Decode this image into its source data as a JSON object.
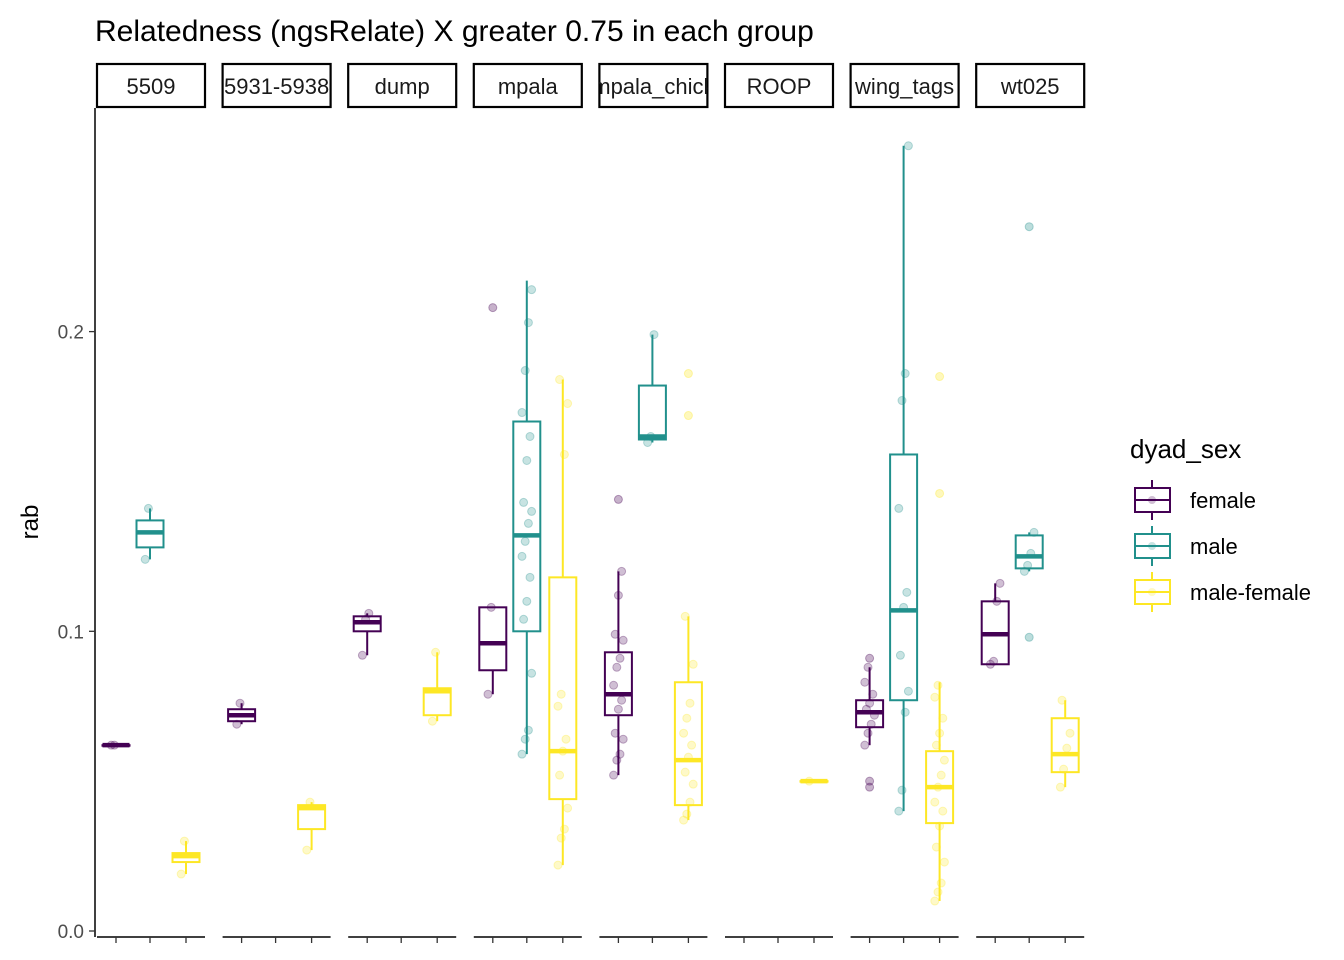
{
  "chart_data": {
    "type": "box",
    "title": "Relatedness (ngsRelate) X greater 0.75 in each group",
    "xlabel": "",
    "ylabel": "rab",
    "ylim": [
      0,
      0.27
    ],
    "yticks": [
      0.0,
      0.1,
      0.2
    ],
    "ytick_labels": [
      "0.0",
      "0.1",
      "0.2"
    ],
    "grid": false,
    "facets": [
      "5509",
      "5931-5938",
      "dump",
      "mpala",
      "mpala_chick",
      "ROOP",
      "wing_tags",
      "wt025"
    ],
    "legend": {
      "title": "dyad_sex",
      "position": "right",
      "entries": [
        "female",
        "male",
        "male-female"
      ]
    },
    "series_colors": {
      "female": "#440154",
      "male": "#21908C",
      "male-female": "#FDE725"
    },
    "groups": [
      {
        "facet": "5509",
        "sex": "female",
        "whisker_low": 0.062,
        "q1": 0.062,
        "median": 0.062,
        "q3": 0.062,
        "whisker_high": 0.062,
        "outliers": [],
        "points": [
          0.062,
          0.062
        ]
      },
      {
        "facet": "5509",
        "sex": "male",
        "whisker_low": 0.124,
        "q1": 0.128,
        "median": 0.133,
        "q3": 0.137,
        "whisker_high": 0.141,
        "outliers": [],
        "points": [
          0.124,
          0.141
        ]
      },
      {
        "facet": "5509",
        "sex": "male-female",
        "whisker_low": 0.019,
        "q1": 0.023,
        "median": 0.025,
        "q3": 0.026,
        "whisker_high": 0.03,
        "outliers": [],
        "points": [
          0.019,
          0.03
        ]
      },
      {
        "facet": "5931-5938",
        "sex": "female",
        "whisker_low": 0.069,
        "q1": 0.07,
        "median": 0.072,
        "q3": 0.074,
        "whisker_high": 0.076,
        "outliers": [],
        "points": [
          0.069,
          0.076
        ]
      },
      {
        "facet": "5931-5938",
        "sex": "male-female",
        "whisker_low": 0.027,
        "q1": 0.034,
        "median": 0.041,
        "q3": 0.042,
        "whisker_high": 0.043,
        "outliers": [],
        "points": [
          0.027,
          0.043
        ]
      },
      {
        "facet": "dump",
        "sex": "female",
        "whisker_low": 0.092,
        "q1": 0.1,
        "median": 0.103,
        "q3": 0.105,
        "whisker_high": 0.106,
        "outliers": [],
        "points": [
          0.092,
          0.104,
          0.106
        ]
      },
      {
        "facet": "dump",
        "sex": "male-female",
        "whisker_low": 0.07,
        "q1": 0.072,
        "median": 0.08,
        "q3": 0.081,
        "whisker_high": 0.093,
        "outliers": [],
        "points": [
          0.07,
          0.093
        ]
      },
      {
        "facet": "mpala",
        "sex": "female",
        "whisker_low": 0.079,
        "q1": 0.087,
        "median": 0.096,
        "q3": 0.108,
        "whisker_high": 0.108,
        "outliers": [
          0.208
        ],
        "points": [
          0.079,
          0.108
        ]
      },
      {
        "facet": "mpala",
        "sex": "male",
        "whisker_low": 0.059,
        "q1": 0.1,
        "median": 0.132,
        "q3": 0.17,
        "whisker_high": 0.217,
        "outliers": [],
        "points": [
          0.059,
          0.064,
          0.067,
          0.086,
          0.104,
          0.11,
          0.118,
          0.125,
          0.13,
          0.136,
          0.14,
          0.143,
          0.157,
          0.165,
          0.173,
          0.187,
          0.203,
          0.214
        ]
      },
      {
        "facet": "mpala",
        "sex": "male-female",
        "whisker_low": 0.022,
        "q1": 0.044,
        "median": 0.06,
        "q3": 0.118,
        "whisker_high": 0.184,
        "outliers": [],
        "points": [
          0.022,
          0.031,
          0.034,
          0.041,
          0.052,
          0.06,
          0.064,
          0.075,
          0.079,
          0.159,
          0.176,
          0.184
        ]
      },
      {
        "facet": "mpala_chick",
        "sex": "female",
        "whisker_low": 0.052,
        "q1": 0.072,
        "median": 0.079,
        "q3": 0.093,
        "whisker_high": 0.12,
        "outliers": [
          0.144
        ],
        "points": [
          0.052,
          0.057,
          0.059,
          0.064,
          0.066,
          0.074,
          0.077,
          0.082,
          0.088,
          0.091,
          0.097,
          0.099,
          0.112,
          0.12
        ]
      },
      {
        "facet": "mpala_chick",
        "sex": "male",
        "whisker_low": 0.163,
        "q1": 0.164,
        "median": 0.165,
        "q3": 0.182,
        "whisker_high": 0.199,
        "outliers": [],
        "points": [
          0.163,
          0.165,
          0.199
        ]
      },
      {
        "facet": "mpala_chick",
        "sex": "male-female",
        "whisker_low": 0.037,
        "q1": 0.042,
        "median": 0.057,
        "q3": 0.083,
        "whisker_high": 0.105,
        "outliers": [
          0.172,
          0.186
        ],
        "points": [
          0.037,
          0.039,
          0.043,
          0.049,
          0.053,
          0.058,
          0.062,
          0.066,
          0.071,
          0.076,
          0.089,
          0.105
        ]
      },
      {
        "facet": "ROOP",
        "sex": "male-female",
        "whisker_low": 0.05,
        "q1": 0.05,
        "median": 0.05,
        "q3": 0.05,
        "whisker_high": 0.05,
        "outliers": [],
        "points": [
          0.05
        ]
      },
      {
        "facet": "wing_tags",
        "sex": "female",
        "whisker_low": 0.062,
        "q1": 0.068,
        "median": 0.073,
        "q3": 0.077,
        "whisker_high": 0.088,
        "outliers": [
          0.048,
          0.05,
          0.091
        ],
        "points": [
          0.062,
          0.066,
          0.069,
          0.072,
          0.074,
          0.076,
          0.079,
          0.083,
          0.088
        ]
      },
      {
        "facet": "wing_tags",
        "sex": "male",
        "whisker_low": 0.04,
        "q1": 0.077,
        "median": 0.107,
        "q3": 0.159,
        "whisker_high": 0.262,
        "outliers": [],
        "points": [
          0.04,
          0.047,
          0.073,
          0.08,
          0.092,
          0.108,
          0.113,
          0.141,
          0.177,
          0.186,
          0.262
        ]
      },
      {
        "facet": "wing_tags",
        "sex": "male-female",
        "whisker_low": 0.01,
        "q1": 0.036,
        "median": 0.048,
        "q3": 0.06,
        "whisker_high": 0.083,
        "outliers": [
          0.146,
          0.185
        ],
        "points": [
          0.01,
          0.013,
          0.016,
          0.023,
          0.028,
          0.035,
          0.04,
          0.043,
          0.048,
          0.052,
          0.057,
          0.062,
          0.066,
          0.071,
          0.078,
          0.082
        ]
      },
      {
        "facet": "wt025",
        "sex": "female",
        "whisker_low": 0.089,
        "q1": 0.089,
        "median": 0.099,
        "q3": 0.11,
        "whisker_high": 0.116,
        "outliers": [],
        "points": [
          0.089,
          0.09,
          0.11,
          0.116
        ]
      },
      {
        "facet": "wt025",
        "sex": "male",
        "whisker_low": 0.12,
        "q1": 0.121,
        "median": 0.125,
        "q3": 0.132,
        "whisker_high": 0.133,
        "outliers": [
          0.098,
          0.235
        ],
        "points": [
          0.12,
          0.122,
          0.126,
          0.133
        ]
      },
      {
        "facet": "wt025",
        "sex": "male-female",
        "whisker_low": 0.048,
        "q1": 0.053,
        "median": 0.059,
        "q3": 0.071,
        "whisker_high": 0.077,
        "outliers": [],
        "points": [
          0.048,
          0.054,
          0.061,
          0.066,
          0.077
        ]
      }
    ]
  }
}
